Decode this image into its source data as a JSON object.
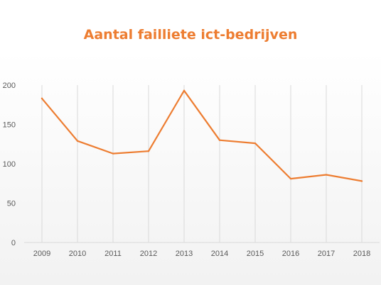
{
  "chart_data": {
    "type": "line",
    "title": "Aantal failliete ict-bedrijven",
    "xlabel": "",
    "ylabel": "",
    "categories": [
      "2009",
      "2010",
      "2011",
      "2012",
      "2013",
      "2014",
      "2015",
      "2016",
      "2017",
      "2018"
    ],
    "series": [
      {
        "values": [
          183,
          129,
          113,
          116,
          193,
          130,
          126,
          81,
          86,
          78
        ]
      }
    ],
    "ylim": [
      0,
      200
    ],
    "yticks": [
      0,
      50,
      100,
      150,
      200
    ],
    "grid": "vertical",
    "legend": "none",
    "colors": {
      "line": "#ed7d31",
      "title": "#ed7d31",
      "grid": "#d9d9d9",
      "background_top": "#ffffff",
      "background_bottom": "#f2f2f2"
    }
  }
}
